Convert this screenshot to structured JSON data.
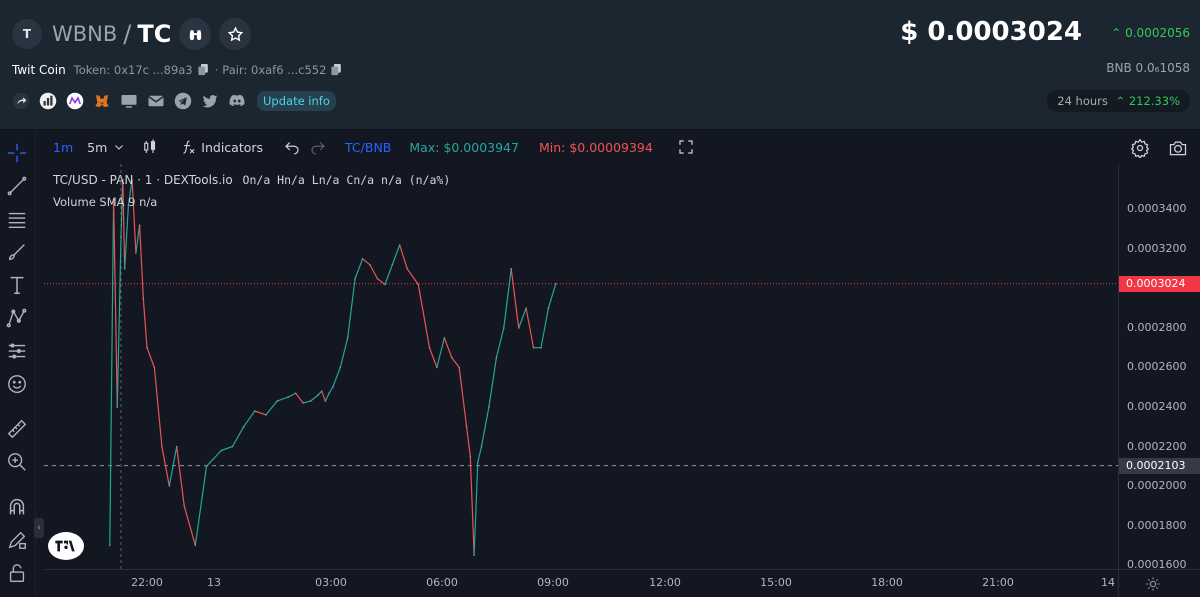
{
  "header": {
    "avatar_letter": "T",
    "base": "WBNB",
    "slash": "/",
    "quote": "TC",
    "token_name": "Twit Coin",
    "token_label": "Token: 0x17c ...89a3",
    "pair_label": "Pair: 0xaf6 ...c552",
    "update_label": "Update info",
    "price": "$ 0.0003024",
    "price_change": "0.0002056",
    "bnb_price": "BNB  0.0₆1058",
    "period_label": "24 hours",
    "period_change": "212.33%",
    "colors": {
      "up": "#34c759",
      "accent": "#4fd1e8"
    },
    "icons": [
      "share-icon",
      "chart-logo-icon",
      "coin-logo-icon",
      "metamask-icon",
      "monitor-icon",
      "mail-icon",
      "telegram-icon",
      "twitter-icon",
      "discord-icon"
    ]
  },
  "toolbar": {
    "tf_1m": "1m",
    "tf_5m": "5m",
    "indicators": "Indicators",
    "pair": "TC/BNB",
    "max": "Max: $0.0003947",
    "min": "Min: $0.00009394"
  },
  "legend": {
    "symbol": "TC/USD - PAN · 1 · DEXTools.io",
    "ohlc": "On/a Hn/a Ln/a Cn/a n/a (n/a%)",
    "volume": "Volume SMA 9  n/a"
  },
  "chart_data": {
    "type": "line",
    "title": "TC/USD - PAN · 1 · DEXTools.io",
    "x_ticks": [
      "22:00",
      "13",
      "03:00",
      "06:00",
      "09:00",
      "12:00",
      "15:00",
      "18:00",
      "21:00",
      "14"
    ],
    "y_ticks": [
      "0.0001600",
      "0.0001800",
      "0.0002000",
      "0.0002200",
      "0.0002400",
      "0.0002600",
      "0.0002800",
      "0.0003000",
      "0.0003200",
      "0.0003400"
    ],
    "ylim": [
      0.000158,
      0.000363
    ],
    "current_price": "0.0003024",
    "crosshair_price": "0.0002103",
    "series": [
      {
        "x": [
          0.0,
          0.1,
          0.2,
          0.3,
          0.35,
          0.4,
          0.5,
          0.6,
          0.7,
          0.8,
          0.9,
          1.0,
          1.2,
          1.4,
          1.6,
          1.8,
          2.0,
          2.3,
          2.6,
          3.0,
          3.3,
          3.6,
          3.9,
          4.2,
          4.5,
          4.8,
          5.0,
          5.2,
          5.4,
          5.6,
          5.7,
          5.8,
          5.9,
          6.0,
          6.2,
          6.4,
          6.6,
          6.8,
          7.0,
          7.2,
          7.4,
          7.6,
          7.8,
          8.0,
          8.3,
          8.6,
          8.8,
          9.0,
          9.2,
          9.4,
          9.6,
          9.7,
          9.8,
          9.9,
          10.0,
          10.2,
          10.4,
          10.6,
          10.8,
          11.0,
          11.2,
          11.4,
          11.6,
          11.8,
          12.0
        ],
        "y": [
          0.00017,
          0.000345,
          0.00024,
          0.000326,
          0.000355,
          0.00031,
          0.000342,
          0.000355,
          0.000318,
          0.000332,
          0.000295,
          0.00027,
          0.00026,
          0.00022,
          0.0002,
          0.00022,
          0.00019,
          0.00017,
          0.00021,
          0.000218,
          0.00022,
          0.00023,
          0.000238,
          0.000236,
          0.000243,
          0.000245,
          0.000247,
          0.000242,
          0.000243,
          0.000246,
          0.000248,
          0.000243,
          0.000247,
          0.00025,
          0.00026,
          0.000275,
          0.000305,
          0.000315,
          0.000312,
          0.000305,
          0.000302,
          0.000312,
          0.000322,
          0.00031,
          0.000302,
          0.00027,
          0.00026,
          0.000275,
          0.000265,
          0.00026,
          0.00023,
          0.000215,
          0.000165,
          0.000212,
          0.00022,
          0.00024,
          0.000265,
          0.00028,
          0.00031,
          0.00028,
          0.00029,
          0.00027,
          0.00027,
          0.00029,
          0.0003024
        ]
      }
    ],
    "grid": false,
    "colors": {
      "up": "#26a69a",
      "down": "#ef5350",
      "last_price": "#f23645"
    }
  },
  "right_tools": [
    "gear-icon",
    "camera-icon"
  ]
}
